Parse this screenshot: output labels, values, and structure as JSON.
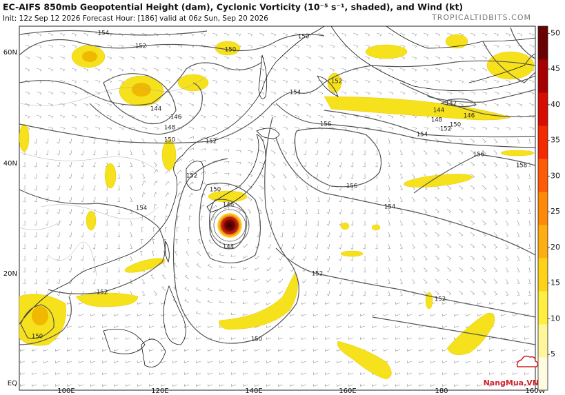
{
  "header": {
    "title": "EC-AIFS 850mb Geopotential Height (dam), Cyclonic Vorticity (10⁻⁵ s⁻¹, shaded), and Wind (kt)",
    "subtitle": "Init: 12z Sep 12 2026   Forecast Hour: [186]   valid at 06z Sun, Sep 20 2026",
    "source": "TROPICALTIDBITS.COM"
  },
  "map": {
    "lat_labels": [
      "60N",
      "40N",
      "20N",
      "EQ"
    ],
    "lon_labels": [
      "100E",
      "120E",
      "140E",
      "160E",
      "180",
      "160W"
    ],
    "contour_labels": [
      "154",
      "152",
      "150",
      "150",
      "154",
      "152",
      "146",
      "144",
      "148",
      "150",
      "152",
      "156",
      "156",
      "154",
      "152",
      "152",
      "150",
      "150",
      "152",
      "150",
      "146",
      "144",
      "154",
      "142",
      "144",
      "146",
      "148",
      "150",
      "152",
      "154",
      "156",
      "158",
      "152"
    ]
  },
  "colorbar": {
    "range": [
      0,
      51
    ],
    "ticks": [
      5,
      10,
      15,
      20,
      25,
      30,
      35,
      40,
      45,
      50
    ],
    "colors": [
      "#fffbe0",
      "#fff59a",
      "#ffee40",
      "#ffd21a",
      "#ffae12",
      "#ff8a0a",
      "#ff5a05",
      "#f52a00",
      "#d80c00",
      "#a80000",
      "#6a0000"
    ]
  },
  "watermark": "NangMua.VN"
}
